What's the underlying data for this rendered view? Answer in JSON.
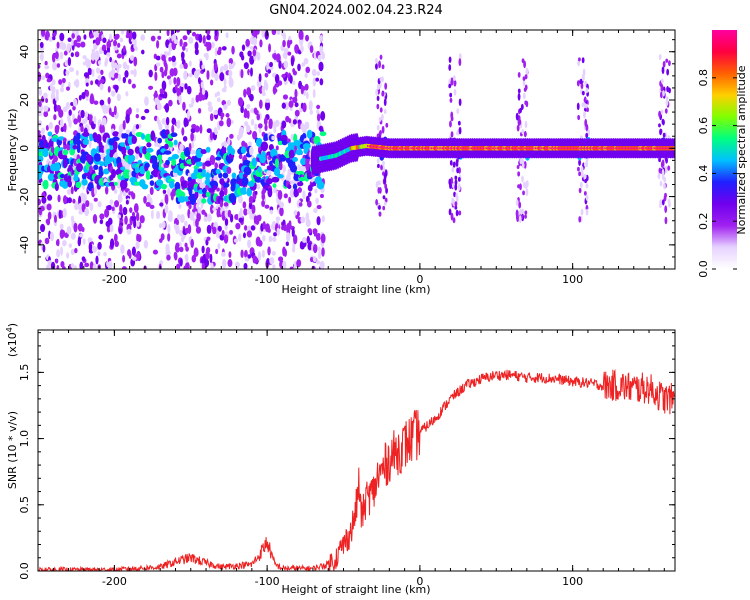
{
  "figure": {
    "title": "GN04.2024.002.04.23.R24"
  },
  "colors": {
    "axis": "#000000",
    "snr_line": "#ee2222",
    "colormap": [
      "#ffffff",
      "#e6d2ff",
      "#a020f0",
      "#7000ee",
      "#2020ff",
      "#00c0ff",
      "#00ff80",
      "#80ff00",
      "#ffd000",
      "#ff6000",
      "#ff0040",
      "#ff00a0"
    ]
  },
  "chart_data": [
    {
      "id": "spectrogram",
      "type": "heatmap",
      "xlabel": "Height of straight line (km)",
      "ylabel": "Frequency (Hz)",
      "xlim": [
        -250,
        167
      ],
      "ylim": [
        -50,
        49
      ],
      "x_ticks": [
        -200,
        -100,
        0,
        100
      ],
      "y_ticks": [
        -40,
        -20,
        0,
        20,
        40
      ],
      "colorbar": {
        "label": "Normalized spectral amplitude",
        "range": [
          0.0,
          1.0
        ],
        "ticks": [
          "0.0",
          "0.2",
          "0.4",
          "0.6",
          "0.8"
        ]
      },
      "signal_band": {
        "ridge_frequency_hz": [
          [
            -70,
            -5
          ],
          [
            -55,
            -3
          ],
          [
            -45,
            0
          ],
          [
            -35,
            1
          ],
          [
            -20,
            0
          ],
          [
            0,
            0
          ],
          [
            167,
            0
          ]
        ],
        "noise_region_km": [
          -250,
          -65
        ],
        "vertical_bursts_km": [
          -25,
          23,
          67,
          107,
          160
        ]
      }
    },
    {
      "id": "snr",
      "type": "line",
      "xlabel": "Height of straight line (km)",
      "ylabel": "SNR (10 * v/v)",
      "y_multiplier": "(x10^4)",
      "xlim": [
        -250,
        167
      ],
      "ylim": [
        0,
        1.82
      ],
      "x_ticks": [
        -200,
        -100,
        0,
        100
      ],
      "y_ticks": [
        "0.0",
        "0.5",
        "1.0",
        "1.5"
      ],
      "series": [
        {
          "x": [
            -250,
            -200,
            -170,
            -160,
            -150,
            -140,
            -130,
            -110,
            -105,
            -100,
            -95,
            -90,
            -70,
            -60,
            -55,
            -50,
            -45,
            -42,
            -40,
            -38,
            -35,
            -30,
            -28,
            -25,
            -20,
            -15,
            -10,
            -5,
            0,
            10,
            20,
            30,
            40,
            50,
            60,
            70,
            80,
            90,
            100,
            110,
            120,
            130,
            140,
            150,
            160,
            167
          ],
          "y": [
            0.01,
            0.01,
            0.03,
            0.07,
            0.1,
            0.06,
            0.03,
            0.05,
            0.12,
            0.22,
            0.05,
            0.02,
            0.02,
            0.05,
            0.1,
            0.2,
            0.3,
            0.45,
            0.65,
            0.4,
            0.55,
            0.6,
            0.7,
            0.75,
            0.85,
            0.9,
            0.95,
            1.0,
            1.05,
            1.15,
            1.3,
            1.4,
            1.45,
            1.48,
            1.48,
            1.46,
            1.46,
            1.45,
            1.43,
            1.42,
            1.4,
            1.4,
            1.38,
            1.38,
            1.3,
            1.3
          ]
        }
      ]
    }
  ]
}
